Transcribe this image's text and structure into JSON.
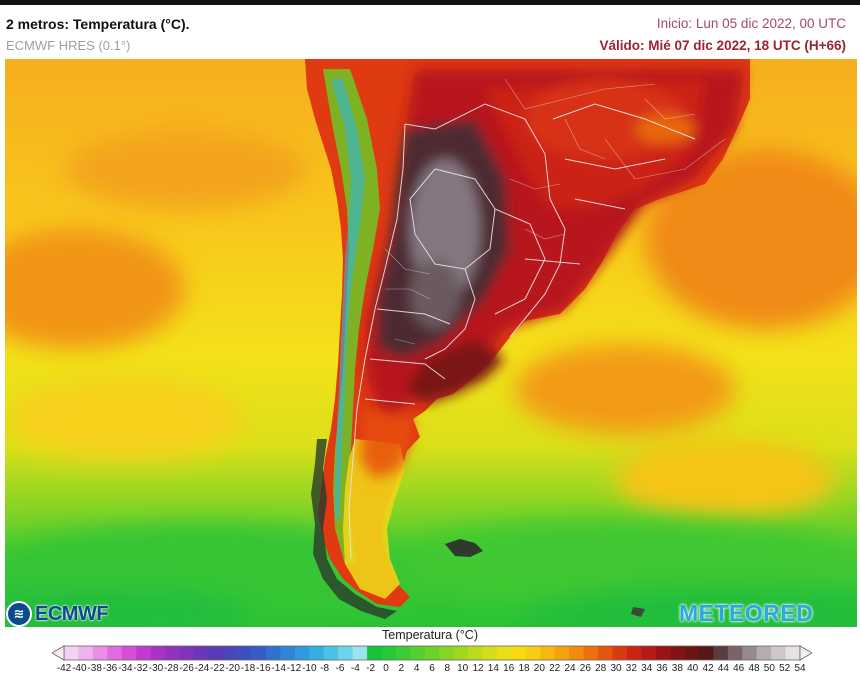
{
  "header": {
    "title": "2 metros: Temperatura (°C).",
    "model": "ECMWF HRES (0.1°)",
    "init": "Inicio: Lun 05 dic 2022, 00 UTC",
    "valid": "Válido: Mié 07 dic 2022, 18 UTC (H+66)"
  },
  "logos": {
    "ecmwf": "ECMWF",
    "meteored": "METEORED"
  },
  "legend": {
    "title": "Temperatura (°C)",
    "ticks": [
      "-42",
      "-40",
      "-38",
      "-36",
      "-34",
      "-32",
      "-30",
      "-28",
      "-26",
      "-24",
      "-22",
      "-20",
      "-18",
      "-16",
      "-14",
      "-12",
      "-10",
      "-8",
      "-6",
      "-4",
      "-2",
      "0",
      "2",
      "4",
      "6",
      "8",
      "10",
      "12",
      "14",
      "16",
      "18",
      "20",
      "22",
      "24",
      "26",
      "28",
      "30",
      "32",
      "34",
      "36",
      "38",
      "40",
      "42",
      "44",
      "46",
      "48",
      "50",
      "52",
      "54"
    ],
    "colors": [
      "#f6d2f1",
      "#f0b2ec",
      "#e98fe6",
      "#e06ae0",
      "#d64dd8",
      "#c23acd",
      "#a933c6",
      "#9331c0",
      "#7f34bb",
      "#6a37b8",
      "#5b3bb5",
      "#4c44b9",
      "#3e4fc0",
      "#355dc8",
      "#3171d1",
      "#3085d8",
      "#2f9ade",
      "#33aee2",
      "#48c3e6",
      "#6dd5ea",
      "#9be4ee",
      "#18c23a",
      "#26c73a",
      "#3bcb34",
      "#53cf2e",
      "#6cd22a",
      "#86d525",
      "#a0d820",
      "#badb1c",
      "#d4de18",
      "#e8e015",
      "#f5dc12",
      "#f8cc10",
      "#f7b80e",
      "#f6a20c",
      "#f38a0b",
      "#ee700b",
      "#e6550c",
      "#da3a10",
      "#cb2414",
      "#b71818",
      "#9e1216",
      "#841214",
      "#6a1414",
      "#541818",
      "#5a3c40",
      "#7a6468",
      "#978a8e",
      "#b5acae",
      "#cfc8ca",
      "#e6e2e4"
    ]
  }
}
